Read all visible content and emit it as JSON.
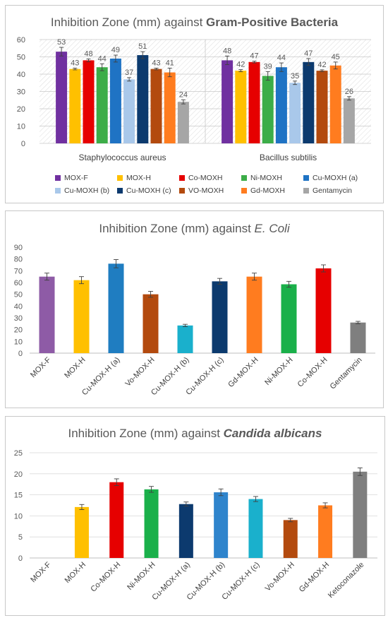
{
  "chart_data": [
    {
      "type": "bar",
      "title_plain": "Inhibition Zone (mm) against ",
      "title_bold": "Gram-Positive Bacteria",
      "categories": [
        "Staphylococcus aureus",
        "Bacillus subtilis"
      ],
      "ylim": [
        0,
        60
      ],
      "yticks": [
        "0",
        "10",
        "20",
        "30",
        "40",
        "50",
        "60"
      ],
      "grid": true,
      "legend_position": "bottom",
      "series": [
        {
          "name": "MOX-F",
          "color": "#7030a0",
          "values": [
            53,
            48
          ],
          "errors": [
            2.5,
            2.5
          ]
        },
        {
          "name": "MOX-H",
          "color": "#ffc000",
          "values": [
            43,
            42
          ],
          "errors": [
            0.5,
            0.6
          ]
        },
        {
          "name": "Co-MOXH",
          "color": "#e60000",
          "values": [
            48,
            47
          ],
          "errors": [
            0.8,
            0.5
          ]
        },
        {
          "name": "Ni-MOXH",
          "color": "#3cad48",
          "values": [
            44,
            39
          ],
          "errors": [
            2.0,
            2.5
          ]
        },
        {
          "name": "Cu-MOXH (a)",
          "color": "#1f73c4",
          "values": [
            49,
            44
          ],
          "errors": [
            2.0,
            2.5
          ]
        },
        {
          "name": "Cu-MOXH (b)",
          "color": "#a9c8ea",
          "values": [
            37,
            35
          ],
          "errors": [
            1.0,
            1.0
          ]
        },
        {
          "name": "Cu-MOXH (c)",
          "color": "#0c3a6e",
          "values": [
            51,
            47
          ],
          "errors": [
            2.0,
            2.0
          ]
        },
        {
          "name": "VO-MOXH",
          "color": "#b34a0e",
          "values": [
            43,
            42
          ],
          "errors": [
            0.5,
            0.5
          ]
        },
        {
          "name": "Gd-MOXH",
          "color": "#ff7c1f",
          "values": [
            41,
            45
          ],
          "errors": [
            2.5,
            2.0
          ]
        },
        {
          "name": "Gentamycin",
          "color": "#a6a6a6",
          "values": [
            24,
            26
          ],
          "errors": [
            1.2,
            1.0
          ]
        }
      ],
      "data_labels": [
        "53",
        "43",
        "48",
        "44",
        "49",
        "37",
        "51",
        "43",
        "41",
        "24",
        "48",
        "42",
        "47",
        "39",
        "44",
        "35",
        "47",
        "42",
        "45",
        "26"
      ]
    },
    {
      "type": "bar",
      "title_plain": "Inhibition Zone (mm) against ",
      "title_italic": "E. Coli",
      "ylim": [
        0,
        90
      ],
      "yticks": [
        "0",
        "10",
        "20",
        "30",
        "40",
        "50",
        "60",
        "70",
        "80",
        "90"
      ],
      "grid": false,
      "categories": [
        "MOX-F",
        "MOX-H",
        "Cu-MOX-H (a)",
        "Vo-MOX-H",
        "Cu-MOX-H (b)",
        "Cu-MOX-H (c)",
        "Gd-MOX-H",
        "Ni-MOX-H",
        "Co-MOX-H",
        "Gentamycin"
      ],
      "values": [
        65,
        62,
        76,
        50,
        23.5,
        61,
        65,
        58.5,
        72,
        26
      ],
      "errors": [
        3,
        3,
        3.5,
        2.5,
        1,
        2.5,
        3,
        2.5,
        3,
        1
      ],
      "colors": [
        "#8e5ba6",
        "#ffc000",
        "#1f7dc1",
        "#b34a0e",
        "#1ab0cc",
        "#0c3a6e",
        "#ff7c1f",
        "#1ab04a",
        "#e60000",
        "#7f7f7f"
      ]
    },
    {
      "type": "bar",
      "title_plain": "Inhibition Zone (mm) against ",
      "title_bold_italic": "Candida albicans",
      "ylim": [
        0,
        25
      ],
      "yticks": [
        "0",
        "5",
        "10",
        "15",
        "20",
        "25"
      ],
      "grid": true,
      "categories": [
        "MOX-F",
        "MOX-H",
        "Co-MOX-H",
        "Ni-MOX-H",
        "Cu-MOX-H (a)",
        "Cu-MOX-H (b)",
        "Cu-MOX-H (c)",
        "Vo-MOX-H",
        "Gd-MOX-H",
        "Ketoconazole"
      ],
      "values": [
        0,
        12.1,
        18,
        16.3,
        12.8,
        15.6,
        14,
        9,
        12.5,
        20.5
      ],
      "errors": [
        0,
        0.6,
        0.8,
        0.7,
        0.5,
        0.8,
        0.6,
        0.4,
        0.6,
        0.9
      ],
      "colors": [
        "#8e5ba6",
        "#ffc000",
        "#e60000",
        "#1ab04a",
        "#0c3a6e",
        "#2f84cc",
        "#1ab0cc",
        "#b34a0e",
        "#ff7c1f",
        "#7f7f7f"
      ]
    }
  ]
}
